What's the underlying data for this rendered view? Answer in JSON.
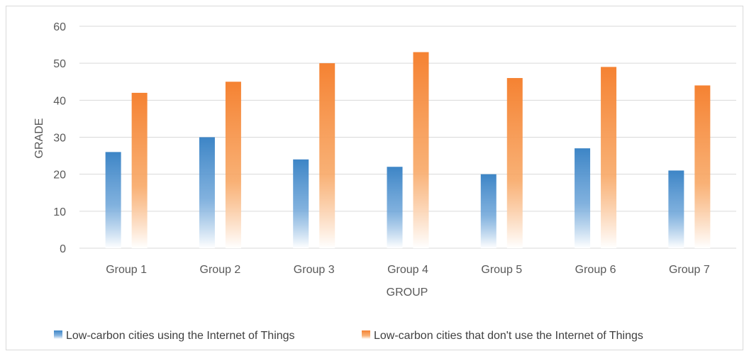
{
  "chart_data": {
    "type": "bar",
    "title": "",
    "xlabel": "GROUP",
    "ylabel": "GRADE",
    "categories": [
      "Group 1",
      "Group 2",
      "Group 3",
      "Group 4",
      "Group 5",
      "Group 6",
      "Group 7"
    ],
    "series": [
      {
        "name": "Low-carbon cities using the Internet of Things",
        "values": [
          26,
          30,
          24,
          22,
          20,
          27,
          21
        ],
        "color": "#3d85c6"
      },
      {
        "name": "Low-carbon cities that don't use the Internet of Things",
        "values": [
          42,
          45,
          50,
          53,
          46,
          49,
          44
        ],
        "color": "#f58232"
      }
    ],
    "ylim": [
      0,
      60
    ],
    "yticks": [
      0,
      10,
      20,
      30,
      40,
      50,
      60
    ],
    "grid": true,
    "legend_position": "bottom"
  }
}
